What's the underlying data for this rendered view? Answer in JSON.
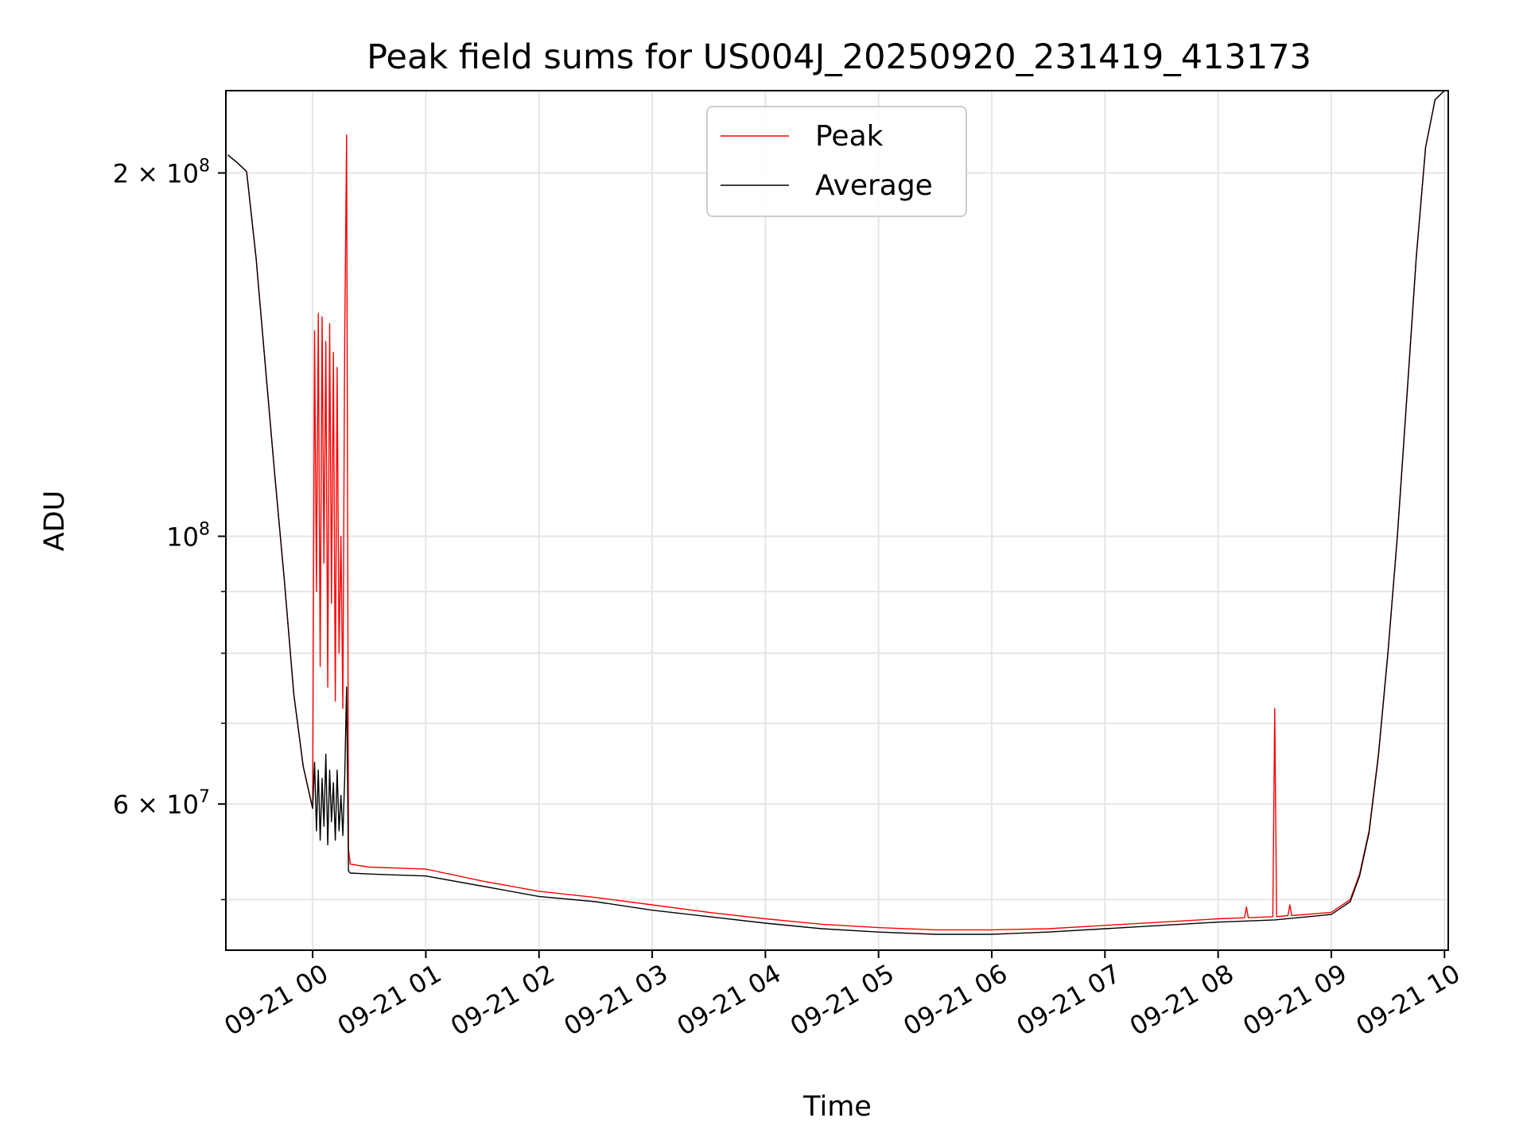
{
  "chart_data": {
    "type": "line",
    "title": "Peak field sums for US004J_20250920_231419_413173",
    "xlabel": "Time",
    "ylabel": "ADU",
    "x_range": [
      "2025-09-20 23:14",
      "2025-09-21 10:02"
    ],
    "ylim": [
      45400000,
      234000000
    ],
    "y_scale": "log",
    "grid": true,
    "legend_position": "upper center",
    "x_ticks": [
      {
        "t": "2025-09-21 00:00",
        "label": "09-21 00"
      },
      {
        "t": "2025-09-21 01:00",
        "label": "09-21 01"
      },
      {
        "t": "2025-09-21 02:00",
        "label": "09-21 02"
      },
      {
        "t": "2025-09-21 03:00",
        "label": "09-21 03"
      },
      {
        "t": "2025-09-21 04:00",
        "label": "09-21 04"
      },
      {
        "t": "2025-09-21 05:00",
        "label": "09-21 05"
      },
      {
        "t": "2025-09-21 06:00",
        "label": "09-21 06"
      },
      {
        "t": "2025-09-21 07:00",
        "label": "09-21 07"
      },
      {
        "t": "2025-09-21 08:00",
        "label": "09-21 08"
      },
      {
        "t": "2025-09-21 09:00",
        "label": "09-21 09"
      },
      {
        "t": "2025-09-21 10:00",
        "label": "09-21 10"
      }
    ],
    "y_major_ticks": [
      {
        "value": 200000000,
        "mantissa": "2",
        "exponent": "8"
      },
      {
        "value": 100000000,
        "mantissa": "",
        "exponent": "8"
      },
      {
        "value": 60000000,
        "mantissa": "6",
        "exponent": "7"
      }
    ],
    "y_minor_ticks": [
      50000000,
      70000000,
      80000000,
      90000000
    ],
    "series": [
      {
        "name": "Peak",
        "color": "#ff0000",
        "points": [
          [
            "2025-09-20 23:15",
            207000000
          ],
          [
            "2025-09-20 23:20",
            204000000
          ],
          [
            "2025-09-20 23:25",
            200500000
          ],
          [
            "2025-09-20 23:30",
            170000000
          ],
          [
            "2025-09-20 23:35",
            138000000
          ],
          [
            "2025-09-20 23:40",
            112000000
          ],
          [
            "2025-09-20 23:45",
            92000000
          ],
          [
            "2025-09-20 23:50",
            74000000
          ],
          [
            "2025-09-20 23:55",
            64500000
          ],
          [
            "2025-09-21 00:00",
            59500000
          ],
          [
            "2025-09-21 00:01",
            148000000
          ],
          [
            "2025-09-21 00:02",
            90000000
          ],
          [
            "2025-09-21 00:03",
            153000000
          ],
          [
            "2025-09-21 00:04",
            78000000
          ],
          [
            "2025-09-21 00:05",
            152000000
          ],
          [
            "2025-09-21 00:06",
            95000000
          ],
          [
            "2025-09-21 00:07",
            145000000
          ],
          [
            "2025-09-21 00:08",
            75000000
          ],
          [
            "2025-09-21 00:09",
            150000000
          ],
          [
            "2025-09-21 00:10",
            88000000
          ],
          [
            "2025-09-21 00:11",
            142000000
          ],
          [
            "2025-09-21 00:12",
            73000000
          ],
          [
            "2025-09-21 00:13",
            138000000
          ],
          [
            "2025-09-21 00:14",
            80000000
          ],
          [
            "2025-09-21 00:15",
            100000000
          ],
          [
            "2025-09-21 00:16",
            72000000
          ],
          [
            "2025-09-21 00:17",
            145000000
          ],
          [
            "2025-09-21 00:18",
            215000000
          ],
          [
            "2025-09-21 00:19",
            55000000
          ],
          [
            "2025-09-21 00:20",
            53500000
          ],
          [
            "2025-09-21 00:30",
            53200000
          ],
          [
            "2025-09-21 01:00",
            53000000
          ],
          [
            "2025-09-21 01:30",
            51800000
          ],
          [
            "2025-09-21 02:00",
            50800000
          ],
          [
            "2025-09-21 02:30",
            50200000
          ],
          [
            "2025-09-21 03:00",
            49500000
          ],
          [
            "2025-09-21 03:30",
            48800000
          ],
          [
            "2025-09-21 04:00",
            48200000
          ],
          [
            "2025-09-21 04:30",
            47700000
          ],
          [
            "2025-09-21 05:00",
            47400000
          ],
          [
            "2025-09-21 05:30",
            47200000
          ],
          [
            "2025-09-21 06:00",
            47200000
          ],
          [
            "2025-09-21 06:30",
            47300000
          ],
          [
            "2025-09-21 07:00",
            47600000
          ],
          [
            "2025-09-21 07:30",
            47900000
          ],
          [
            "2025-09-21 08:00",
            48200000
          ],
          [
            "2025-09-21 08:14",
            48300000
          ],
          [
            "2025-09-21 08:15",
            49300000
          ],
          [
            "2025-09-21 08:16",
            48300000
          ],
          [
            "2025-09-21 08:29",
            48400000
          ],
          [
            "2025-09-21 08:30",
            72000000
          ],
          [
            "2025-09-21 08:31",
            48400000
          ],
          [
            "2025-09-21 08:37",
            48500000
          ],
          [
            "2025-09-21 08:38",
            49500000
          ],
          [
            "2025-09-21 08:39",
            48500000
          ],
          [
            "2025-09-21 09:00",
            48800000
          ],
          [
            "2025-09-21 09:10",
            50000000
          ],
          [
            "2025-09-21 09:15",
            52500000
          ],
          [
            "2025-09-21 09:20",
            57000000
          ],
          [
            "2025-09-21 09:25",
            66000000
          ],
          [
            "2025-09-21 09:30",
            80000000
          ],
          [
            "2025-09-21 09:35",
            100000000
          ],
          [
            "2025-09-21 09:40",
            130000000
          ],
          [
            "2025-09-21 09:45",
            170000000
          ],
          [
            "2025-09-21 09:50",
            210000000
          ],
          [
            "2025-09-21 09:55",
            230000000
          ],
          [
            "2025-09-21 10:00",
            234000000
          ]
        ]
      },
      {
        "name": "Average",
        "color": "#000000",
        "points": [
          [
            "2025-09-20 23:15",
            207000000
          ],
          [
            "2025-09-20 23:20",
            204000000
          ],
          [
            "2025-09-20 23:25",
            200500000
          ],
          [
            "2025-09-20 23:30",
            170000000
          ],
          [
            "2025-09-20 23:35",
            138000000
          ],
          [
            "2025-09-20 23:40",
            112000000
          ],
          [
            "2025-09-20 23:45",
            92000000
          ],
          [
            "2025-09-20 23:50",
            74000000
          ],
          [
            "2025-09-20 23:55",
            64500000
          ],
          [
            "2025-09-21 00:00",
            59500000
          ],
          [
            "2025-09-21 00:01",
            65000000
          ],
          [
            "2025-09-21 00:02",
            57000000
          ],
          [
            "2025-09-21 00:03",
            64000000
          ],
          [
            "2025-09-21 00:04",
            56000000
          ],
          [
            "2025-09-21 00:05",
            63000000
          ],
          [
            "2025-09-21 00:06",
            57500000
          ],
          [
            "2025-09-21 00:07",
            66000000
          ],
          [
            "2025-09-21 00:08",
            55500000
          ],
          [
            "2025-09-21 00:09",
            64000000
          ],
          [
            "2025-09-21 00:10",
            58000000
          ],
          [
            "2025-09-21 00:11",
            62500000
          ],
          [
            "2025-09-21 00:12",
            56000000
          ],
          [
            "2025-09-21 00:13",
            64000000
          ],
          [
            "2025-09-21 00:14",
            57000000
          ],
          [
            "2025-09-21 00:15",
            61000000
          ],
          [
            "2025-09-21 00:16",
            56500000
          ],
          [
            "2025-09-21 00:17",
            63000000
          ],
          [
            "2025-09-21 00:18",
            75000000
          ],
          [
            "2025-09-21 00:19",
            52800000
          ],
          [
            "2025-09-21 00:20",
            52600000
          ],
          [
            "2025-09-21 00:30",
            52500000
          ],
          [
            "2025-09-21 01:00",
            52300000
          ],
          [
            "2025-09-21 01:30",
            51300000
          ],
          [
            "2025-09-21 02:00",
            50300000
          ],
          [
            "2025-09-21 02:30",
            49800000
          ],
          [
            "2025-09-21 03:00",
            49000000
          ],
          [
            "2025-09-21 03:30",
            48400000
          ],
          [
            "2025-09-21 04:00",
            47800000
          ],
          [
            "2025-09-21 04:30",
            47300000
          ],
          [
            "2025-09-21 05:00",
            47000000
          ],
          [
            "2025-09-21 05:30",
            46800000
          ],
          [
            "2025-09-21 06:00",
            46800000
          ],
          [
            "2025-09-21 06:30",
            47000000
          ],
          [
            "2025-09-21 07:00",
            47300000
          ],
          [
            "2025-09-21 07:30",
            47600000
          ],
          [
            "2025-09-21 08:00",
            47900000
          ],
          [
            "2025-09-21 08:30",
            48100000
          ],
          [
            "2025-09-21 09:00",
            48600000
          ],
          [
            "2025-09-21 09:10",
            49800000
          ],
          [
            "2025-09-21 09:15",
            52300000
          ],
          [
            "2025-09-21 09:20",
            56800000
          ],
          [
            "2025-09-21 09:25",
            65800000
          ],
          [
            "2025-09-21 09:30",
            80000000
          ],
          [
            "2025-09-21 09:35",
            100000000
          ],
          [
            "2025-09-21 09:40",
            130000000
          ],
          [
            "2025-09-21 09:45",
            170000000
          ],
          [
            "2025-09-21 09:50",
            210000000
          ],
          [
            "2025-09-21 09:55",
            230000000
          ],
          [
            "2025-09-21 10:00",
            234000000
          ]
        ]
      }
    ]
  }
}
